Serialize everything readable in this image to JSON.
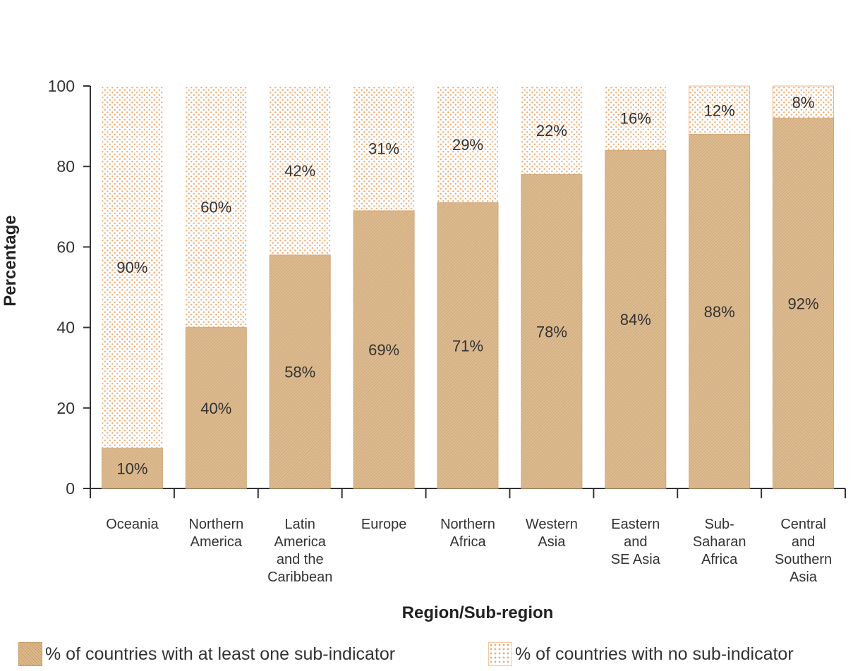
{
  "chart_data": {
    "type": "bar",
    "stacked": true,
    "categories": [
      [
        "Oceania"
      ],
      [
        "Northern",
        "America"
      ],
      [
        "Latin",
        "America",
        "and the",
        "Caribbean"
      ],
      [
        "Europe"
      ],
      [
        "Northern",
        "Africa"
      ],
      [
        "Western",
        "Asia"
      ],
      [
        "Eastern",
        "and",
        "SE Asia"
      ],
      [
        "Sub-",
        "Saharan",
        "Africa"
      ],
      [
        "Central",
        "and",
        "Southern",
        "Asia"
      ]
    ],
    "series": [
      {
        "name": "% of countries with at least one sub-indicator",
        "values": [
          10,
          40,
          58,
          69,
          71,
          78,
          84,
          88,
          92
        ],
        "labels": [
          "10%",
          "40%",
          "58%",
          "69%",
          "71%",
          "78%",
          "84%",
          "88%",
          "92%"
        ],
        "color": "#d9b589"
      },
      {
        "name": "% of countries with no sub-indicator",
        "values": [
          90,
          60,
          42,
          31,
          29,
          22,
          16,
          12,
          8
        ],
        "labels": [
          "90%",
          "60%",
          "42%",
          "31%",
          "29%",
          "22%",
          "16%",
          "12%",
          "8%"
        ],
        "color": "#f0a870"
      }
    ],
    "xlabel": "Region/Sub-region",
    "ylabel": "Percentage",
    "ylim": [
      0,
      100
    ],
    "yticks": [
      "0",
      "20",
      "40",
      "60",
      "80",
      "100"
    ],
    "grid": false,
    "legend_position": "bottom"
  }
}
